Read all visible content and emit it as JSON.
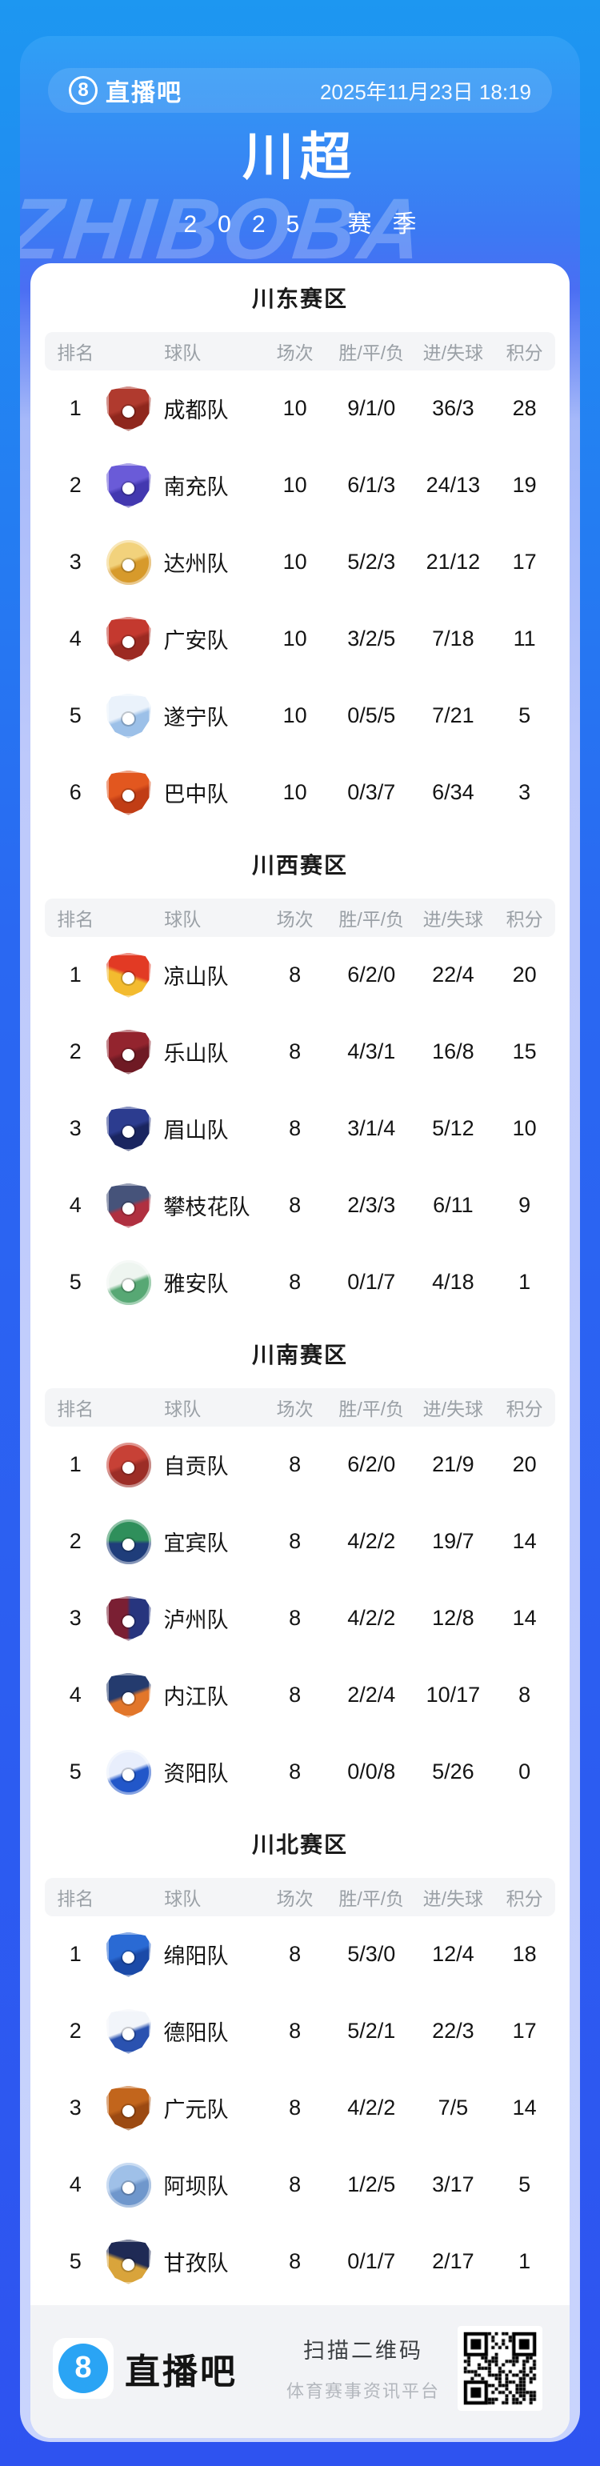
{
  "header": {
    "logo_number": "8",
    "logo_text": "直播吧",
    "datetime": "2025年11月23日 18:19",
    "title": "川超",
    "season": "2025 赛季",
    "watermark": "ZHIBOBA"
  },
  "table_headers": {
    "rank": "排名",
    "team": "球队",
    "games": "场次",
    "wdl": "胜/平/负",
    "goals": "进/失球",
    "points": "积分"
  },
  "colors": {
    "page_top": "#1d97f1",
    "page_bottom": "#2e53f0",
    "poster_light": "#c9d4fd",
    "accent_blue": "#2aa4f4",
    "footer_bg": "#f2f3f6"
  },
  "sections": [
    {
      "title": "川东赛区",
      "rows": [
        {
          "rank": "1",
          "team": "成都队",
          "games": "10",
          "wdl": "9/1/0",
          "goals": "36/3",
          "points": "28",
          "badge": {
            "shape": "shield",
            "c1": "#b03a2e",
            "c2": "#8f271d",
            "angle": 160
          }
        },
        {
          "rank": "2",
          "team": "南充队",
          "games": "10",
          "wdl": "6/1/3",
          "goals": "24/13",
          "points": "19",
          "badge": {
            "shape": "shield",
            "c1": "#6a5bd8",
            "c2": "#4338b0",
            "angle": 160
          }
        },
        {
          "rank": "3",
          "team": "达州队",
          "games": "10",
          "wdl": "5/2/3",
          "goals": "21/12",
          "points": "17",
          "badge": {
            "shape": "circle",
            "c1": "#f2d27c",
            "c2": "#d79a2b",
            "angle": 160
          }
        },
        {
          "rank": "4",
          "team": "广安队",
          "games": "10",
          "wdl": "3/2/5",
          "goals": "7/18",
          "points": "11",
          "badge": {
            "shape": "shield",
            "c1": "#c4392f",
            "c2": "#9c2a22",
            "angle": 160
          }
        },
        {
          "rank": "5",
          "team": "遂宁队",
          "games": "10",
          "wdl": "0/5/5",
          "goals": "7/21",
          "points": "5",
          "badge": {
            "shape": "shield",
            "c1": "#eaf2fb",
            "c2": "#9cc0e8",
            "angle": 160
          }
        },
        {
          "rank": "6",
          "team": "巴中队",
          "games": "10",
          "wdl": "0/3/7",
          "goals": "6/34",
          "points": "3",
          "badge": {
            "shape": "shield",
            "c1": "#e2571f",
            "c2": "#c13d15",
            "angle": 160
          }
        }
      ]
    },
    {
      "title": "川西赛区",
      "rows": [
        {
          "rank": "1",
          "team": "凉山队",
          "games": "8",
          "wdl": "6/2/0",
          "goals": "22/4",
          "points": "20",
          "badge": {
            "shape": "shield",
            "c1": "#e23a24",
            "c2": "#f3bb2f",
            "angle": 200
          }
        },
        {
          "rank": "2",
          "team": "乐山队",
          "games": "8",
          "wdl": "4/3/1",
          "goals": "16/8",
          "points": "15",
          "badge": {
            "shape": "shield",
            "c1": "#93242e",
            "c2": "#6f1a24",
            "angle": 160
          }
        },
        {
          "rank": "3",
          "team": "眉山队",
          "games": "8",
          "wdl": "3/1/4",
          "goals": "5/12",
          "points": "10",
          "badge": {
            "shape": "shield",
            "c1": "#2c3c8f",
            "c2": "#1a2560",
            "angle": 160
          }
        },
        {
          "rank": "4",
          "team": "攀枝花队",
          "games": "8",
          "wdl": "2/3/3",
          "goals": "6/11",
          "points": "9",
          "badge": {
            "shape": "shield",
            "c1": "#46537a",
            "c2": "#b03040",
            "angle": 160
          }
        },
        {
          "rank": "5",
          "team": "雅安队",
          "games": "8",
          "wdl": "0/1/7",
          "goals": "4/18",
          "points": "1",
          "badge": {
            "shape": "circle",
            "c1": "#eef5f0",
            "c2": "#57a874",
            "angle": 160
          }
        }
      ]
    },
    {
      "title": "川南赛区",
      "rows": [
        {
          "rank": "1",
          "team": "自贡队",
          "games": "8",
          "wdl": "6/2/0",
          "goals": "21/9",
          "points": "20",
          "badge": {
            "shape": "circle",
            "c1": "#c74136",
            "c2": "#9c2d26",
            "angle": 160
          }
        },
        {
          "rank": "2",
          "team": "宜宾队",
          "games": "8",
          "wdl": "4/2/2",
          "goals": "19/7",
          "points": "14",
          "badge": {
            "shape": "circle",
            "c1": "#2f8f5b",
            "c2": "#1f3d7a",
            "angle": 180
          }
        },
        {
          "rank": "3",
          "team": "泸州队",
          "games": "8",
          "wdl": "4/2/2",
          "goals": "12/8",
          "points": "14",
          "badge": {
            "shape": "shield",
            "c1": "#7a1f33",
            "c2": "#27357e",
            "angle": 90
          }
        },
        {
          "rank": "4",
          "team": "内江队",
          "games": "8",
          "wdl": "2/2/4",
          "goals": "10/17",
          "points": "8",
          "badge": {
            "shape": "shield",
            "c1": "#243b6e",
            "c2": "#e2762a",
            "angle": 160
          }
        },
        {
          "rank": "5",
          "team": "资阳队",
          "games": "8",
          "wdl": "0/0/8",
          "goals": "5/26",
          "points": "0",
          "badge": {
            "shape": "circle",
            "c1": "#e8eefc",
            "c2": "#2257c9",
            "angle": 160
          }
        }
      ]
    },
    {
      "title": "川北赛区",
      "rows": [
        {
          "rank": "1",
          "team": "绵阳队",
          "games": "8",
          "wdl": "5/3/0",
          "goals": "12/4",
          "points": "18",
          "badge": {
            "shape": "shield",
            "c1": "#2a6ad4",
            "c2": "#1b4aa8",
            "angle": 160
          }
        },
        {
          "rank": "2",
          "team": "德阳队",
          "games": "8",
          "wdl": "5/2/1",
          "goals": "22/3",
          "points": "17",
          "badge": {
            "shape": "shield",
            "c1": "#f2f5fa",
            "c2": "#2a52b0",
            "angle": 160
          }
        },
        {
          "rank": "3",
          "team": "广元队",
          "games": "8",
          "wdl": "4/2/2",
          "goals": "7/5",
          "points": "14",
          "badge": {
            "shape": "shield",
            "c1": "#c2651c",
            "c2": "#9c4a12",
            "angle": 160
          }
        },
        {
          "rank": "4",
          "team": "阿坝队",
          "games": "8",
          "wdl": "1/2/5",
          "goals": "3/17",
          "points": "5",
          "badge": {
            "shape": "circle",
            "c1": "#9fc0e8",
            "c2": "#6f97cc",
            "angle": 160
          }
        },
        {
          "rank": "5",
          "team": "甘孜队",
          "games": "8",
          "wdl": "0/1/7",
          "goals": "2/17",
          "points": "1",
          "badge": {
            "shape": "shield",
            "c1": "#1f2a55",
            "c2": "#d9a43b",
            "angle": 200
          }
        }
      ]
    }
  ],
  "footer": {
    "logo_number": "8",
    "logo_text": "直播吧",
    "scan_text": "扫描二维码",
    "slogan": "体育赛事资讯平台"
  }
}
